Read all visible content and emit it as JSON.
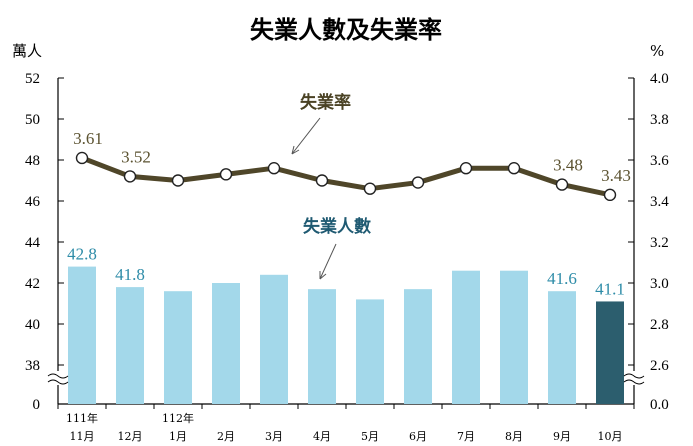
{
  "chart_data": {
    "type": "bar+line",
    "title": "失業人數及失業率",
    "left_unit": "萬人",
    "right_unit": "%",
    "categories": [
      {
        "top": "111年",
        "bottom": "11月"
      },
      {
        "top": "",
        "bottom": "12月"
      },
      {
        "top": "112年",
        "bottom": "1月"
      },
      {
        "top": "",
        "bottom": "2月"
      },
      {
        "top": "",
        "bottom": "3月"
      },
      {
        "top": "",
        "bottom": "4月"
      },
      {
        "top": "",
        "bottom": "5月"
      },
      {
        "top": "",
        "bottom": "6月"
      },
      {
        "top": "",
        "bottom": "7月"
      },
      {
        "top": "",
        "bottom": "8月"
      },
      {
        "top": "",
        "bottom": "9月"
      },
      {
        "top": "",
        "bottom": "10月"
      }
    ],
    "left_axis": {
      "ticks": [
        "0",
        "38",
        "40",
        "42",
        "44",
        "46",
        "48",
        "50",
        "52"
      ],
      "range": [
        38,
        52
      ],
      "axis_break": true
    },
    "right_axis": {
      "ticks": [
        "0.0",
        "2.6",
        "2.8",
        "3.0",
        "3.2",
        "3.4",
        "3.6",
        "3.8",
        "4.0"
      ],
      "range": [
        2.6,
        4.0
      ],
      "axis_break": true
    },
    "series": [
      {
        "name": "失業人數",
        "type": "bar",
        "axis": "left",
        "values": [
          42.8,
          41.8,
          41.6,
          42.0,
          42.4,
          41.7,
          41.2,
          41.7,
          42.6,
          42.6,
          41.6,
          41.1
        ],
        "data_labels": [
          "42.8",
          "41.8",
          "",
          "",
          "",
          "",
          "",
          "",
          "",
          "",
          "41.6",
          "41.1"
        ],
        "color": "#a3d8ea",
        "highlight_last_color": "#2c5e6e"
      },
      {
        "name": "失業率",
        "type": "line",
        "axis": "right",
        "values": [
          3.61,
          3.52,
          3.5,
          3.53,
          3.56,
          3.5,
          3.46,
          3.49,
          3.56,
          3.56,
          3.48,
          3.43
        ],
        "data_labels": [
          "3.61",
          "3.52",
          "",
          "",
          "",
          "",
          "",
          "",
          "",
          "",
          "3.48",
          "3.43"
        ],
        "color": "#4f4629"
      }
    ]
  }
}
